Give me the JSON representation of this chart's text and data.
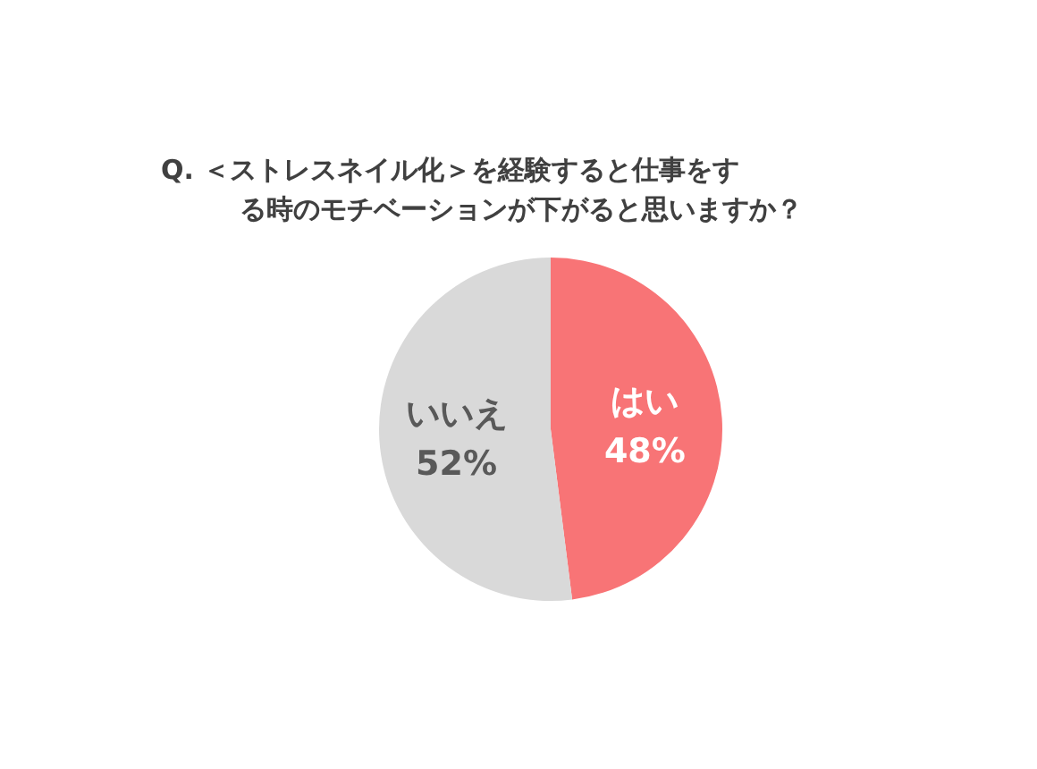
{
  "chart_data": {
    "type": "pie",
    "title": "Q. ＜ストレスネイル化＞を経験すると仕事をする時のモチベーションが下がると思いますか？",
    "categories": [
      "はい",
      "いいえ"
    ],
    "values": [
      48,
      52
    ],
    "colors": [
      "#f87476",
      "#d9d9d9"
    ],
    "value_labels": [
      "48%",
      "52%"
    ],
    "legend": false
  }
}
